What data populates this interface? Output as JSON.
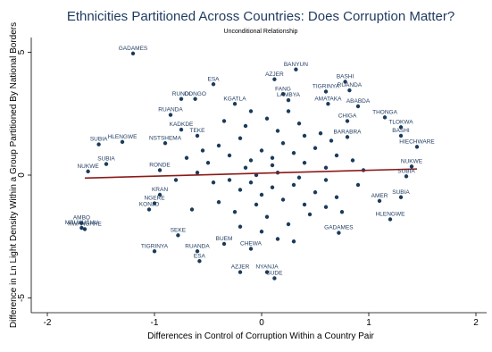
{
  "chart_data": {
    "type": "scatter",
    "title": "Ethnicities Partitioned Across Countries: Does Corruption Matter?",
    "subtitle": "Unconditional Relationship",
    "xlabel": "Differences in Control of Corruption Within a Country Pair",
    "ylabel": "Difference in Ln Light Density Within a Group Partitioned By National Borders",
    "xlim": [
      -2.15,
      2.1
    ],
    "ylim": [
      -5.6,
      5.6
    ],
    "xticks": [
      -2,
      -1,
      0,
      1,
      2
    ],
    "yticks": [
      -5,
      0,
      5
    ],
    "tick_labels_x": [
      "-2",
      "-1",
      "0",
      "1",
      "2"
    ],
    "tick_labels_y": [
      "-5",
      "0",
      "5"
    ],
    "grid": false,
    "colors": {
      "points": "#1a3b5c",
      "fit_line": "#8b1a1a",
      "title": "#1e3a5f"
    },
    "fit_line": {
      "x": [
        -1.65,
        1.45
      ],
      "y": [
        -0.12,
        0.25
      ]
    },
    "labeled_points": [
      {
        "label": "GADAMES",
        "x": -1.2,
        "y": 4.95
      },
      {
        "label": "BANYUN",
        "x": 0.32,
        "y": 4.3
      },
      {
        "label": "AZJER",
        "x": 0.12,
        "y": 3.9
      },
      {
        "label": "BASHI",
        "x": 0.78,
        "y": 3.8
      },
      {
        "label": "ESA",
        "x": -0.45,
        "y": 3.7
      },
      {
        "label": "RUANDA",
        "x": 0.82,
        "y": 3.45
      },
      {
        "label": "FANG",
        "x": 0.2,
        "y": 3.3
      },
      {
        "label": "TIGRINYA",
        "x": 0.6,
        "y": 3.4
      },
      {
        "label": "CONGO",
        "x": -0.62,
        "y": 3.1
      },
      {
        "label": "RUNDI",
        "x": -0.75,
        "y": 3.1
      },
      {
        "label": "LAMBYA",
        "x": 0.25,
        "y": 3.05
      },
      {
        "label": "AMATAKA",
        "x": 0.62,
        "y": 2.9
      },
      {
        "label": "ABABDA",
        "x": 0.9,
        "y": 2.8
      },
      {
        "label": "KGATLA",
        "x": -0.25,
        "y": 2.9
      },
      {
        "label": "RUANDA",
        "x": -0.85,
        "y": 2.45
      },
      {
        "label": "THONGA",
        "x": 1.15,
        "y": 2.35
      },
      {
        "label": "CHIGA",
        "x": 0.8,
        "y": 2.2
      },
      {
        "label": "TLOKWA",
        "x": 1.3,
        "y": 1.95
      },
      {
        "label": "KADKDE",
        "x": -0.75,
        "y": 1.85
      },
      {
        "label": "BASHI",
        "x": 1.3,
        "y": 1.6
      },
      {
        "label": "TEKE",
        "x": -0.6,
        "y": 1.6
      },
      {
        "label": "HLENGWE",
        "x": -1.3,
        "y": 1.35
      },
      {
        "label": "SUBIA",
        "x": -1.52,
        "y": 1.25
      },
      {
        "label": "NSTSHEMA",
        "x": -0.9,
        "y": 1.3
      },
      {
        "label": "BARABRA",
        "x": 0.8,
        "y": 1.55
      },
      {
        "label": "HIECHWARE",
        "x": 1.45,
        "y": 1.15
      },
      {
        "label": "SUBIA",
        "x": -1.45,
        "y": 0.45
      },
      {
        "label": "NUKWE",
        "x": -1.62,
        "y": 0.15
      },
      {
        "label": "NUKWE",
        "x": 1.4,
        "y": 0.35
      },
      {
        "label": "SUBIA",
        "x": 1.35,
        "y": -0.05
      },
      {
        "label": "RONDE",
        "x": -0.95,
        "y": 0.2
      },
      {
        "label": "KRAN",
        "x": -0.95,
        "y": -0.8
      },
      {
        "label": "NGERE",
        "x": -1.0,
        "y": -1.15
      },
      {
        "label": "KONJO",
        "x": -1.05,
        "y": -1.4
      },
      {
        "label": "AMBO",
        "x": -1.68,
        "y": -1.95
      },
      {
        "label": "MBUKUSHU",
        "x": -1.68,
        "y": -2.15
      },
      {
        "label": "KWANGARE",
        "x": -1.65,
        "y": -2.2
      },
      {
        "label": "SEKE",
        "x": -0.78,
        "y": -2.45
      },
      {
        "label": "TIGRINYA",
        "x": -1.0,
        "y": -3.1
      },
      {
        "label": "RUANDA",
        "x": -0.6,
        "y": -3.1
      },
      {
        "label": "ESA",
        "x": -0.58,
        "y": -3.5
      },
      {
        "label": "BUEM",
        "x": -0.35,
        "y": -2.8
      },
      {
        "label": "AZJER",
        "x": -0.2,
        "y": -3.95
      },
      {
        "label": "NYANJA",
        "x": 0.05,
        "y": -3.95
      },
      {
        "label": "SUDE",
        "x": 0.12,
        "y": -4.2
      },
      {
        "label": "CHEWA",
        "x": -0.1,
        "y": -3.0
      },
      {
        "label": "AMER",
        "x": 1.1,
        "y": -1.05
      },
      {
        "label": "SUBIA",
        "x": 1.3,
        "y": -0.9
      },
      {
        "label": "HLENGWE",
        "x": 1.2,
        "y": -1.8
      },
      {
        "label": "GADAMES",
        "x": 0.72,
        "y": -2.35
      }
    ],
    "unlabeled_points": [
      [
        -0.4,
        1.2
      ],
      [
        -0.3,
        0.8
      ],
      [
        -0.2,
        1.5
      ],
      [
        -0.1,
        0.6
      ],
      [
        0.0,
        1.0
      ],
      [
        0.1,
        0.4
      ],
      [
        0.2,
        1.3
      ],
      [
        0.3,
        0.9
      ],
      [
        0.4,
        0.5
      ],
      [
        0.5,
        1.1
      ],
      [
        0.6,
        0.3
      ],
      [
        0.7,
        0.8
      ],
      [
        -0.5,
        0.5
      ],
      [
        -0.6,
        0.1
      ],
      [
        -0.3,
        -0.2
      ],
      [
        -0.2,
        -0.6
      ],
      [
        -0.1,
        -0.3
      ],
      [
        0.0,
        -0.8
      ],
      [
        0.1,
        -0.5
      ],
      [
        0.2,
        -1.0
      ],
      [
        0.3,
        -0.4
      ],
      [
        0.4,
        -1.2
      ],
      [
        0.5,
        -0.7
      ],
      [
        0.6,
        -0.2
      ],
      [
        0.7,
        -0.9
      ],
      [
        -0.4,
        -1.1
      ],
      [
        -0.25,
        -1.5
      ],
      [
        0.05,
        -1.7
      ],
      [
        0.25,
        -2.0
      ],
      [
        0.45,
        -1.6
      ],
      [
        -0.15,
        2.0
      ],
      [
        0.05,
        2.3
      ],
      [
        0.15,
        1.8
      ],
      [
        0.35,
        2.1
      ],
      [
        -0.35,
        2.2
      ],
      [
        0.55,
        1.7
      ],
      [
        -0.05,
        0.0
      ],
      [
        0.15,
        0.1
      ],
      [
        0.35,
        -0.1
      ],
      [
        -0.45,
        -0.3
      ],
      [
        0.85,
        0.6
      ],
      [
        0.95,
        0.2
      ],
      [
        0.9,
        -0.4
      ],
      [
        -0.7,
        0.7
      ],
      [
        -0.8,
        -0.2
      ],
      [
        -0.65,
        -1.4
      ],
      [
        0.75,
        -1.5
      ],
      [
        0.6,
        -1.3
      ],
      [
        -0.1,
        2.6
      ],
      [
        0.25,
        2.6
      ],
      [
        0.0,
        -2.3
      ],
      [
        -0.2,
        -2.1
      ],
      [
        0.15,
        -2.6
      ],
      [
        0.3,
        -2.7
      ],
      [
        -0.05,
        -1.2
      ],
      [
        0.1,
        0.7
      ],
      [
        -0.15,
        0.3
      ],
      [
        0.4,
        1.6
      ],
      [
        -0.55,
        1.0
      ],
      [
        0.65,
        1.4
      ]
    ]
  }
}
